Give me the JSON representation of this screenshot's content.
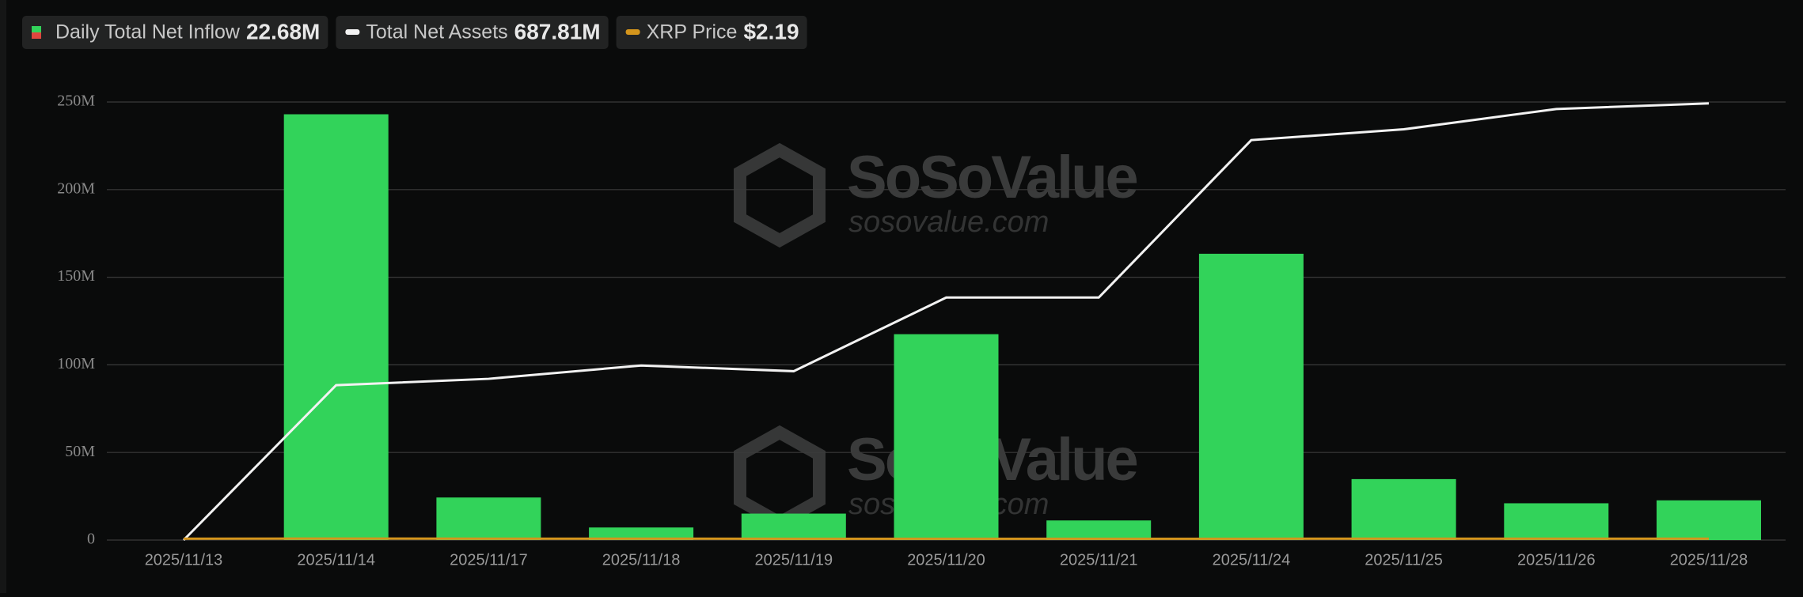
{
  "chart_data": {
    "type": "bar",
    "legend": [
      {
        "name": "Daily Total Net Inflow",
        "value": "22.68M"
      },
      {
        "name": "Total Net Assets",
        "value": "687.81M"
      },
      {
        "name": "XRP Price",
        "value": "$2.19"
      }
    ],
    "watermark": [
      "SoSoValue",
      "sosovalue.com"
    ],
    "categories": [
      "2025/11/13",
      "2025/11/14",
      "2025/11/17",
      "2025/11/18",
      "2025/11/19",
      "2025/11/20",
      "2025/11/21",
      "2025/11/24",
      "2025/11/25",
      "2025/11/26",
      "2025/11/28"
    ],
    "series": [
      {
        "name": "Daily Total Net Inflow",
        "type": "bar",
        "color": "#32d35a",
        "values": [
          0,
          243,
          24.3,
          7.2,
          15.1,
          117.5,
          11.2,
          163.4,
          34.8,
          21,
          22.68
        ]
      },
      {
        "name": "Total Net Assets",
        "type": "line",
        "axis": "y2",
        "color": "#f2f2f2",
        "values": [
          0,
          244,
          254,
          275,
          266,
          382,
          382,
          630,
          647,
          679,
          687.81
        ]
      },
      {
        "name": "XRP Price",
        "type": "line",
        "axis": "y2",
        "color": "#d4951c",
        "values": [
          2.2,
          2.35,
          2.2,
          2.15,
          2.1,
          1.95,
          1.95,
          2.05,
          2.2,
          2.2,
          2.19
        ]
      }
    ],
    "ylim": [
      0,
      250
    ],
    "yticks": [
      {
        "value": 0,
        "label": "0"
      },
      {
        "value": 50,
        "label": "50M"
      },
      {
        "value": 100,
        "label": "100M"
      },
      {
        "value": 150,
        "label": "150M"
      },
      {
        "value": 200,
        "label": "200M"
      },
      {
        "value": 250,
        "label": "250M"
      }
    ],
    "y2lim": [
      0,
      690
    ],
    "grid": true
  }
}
